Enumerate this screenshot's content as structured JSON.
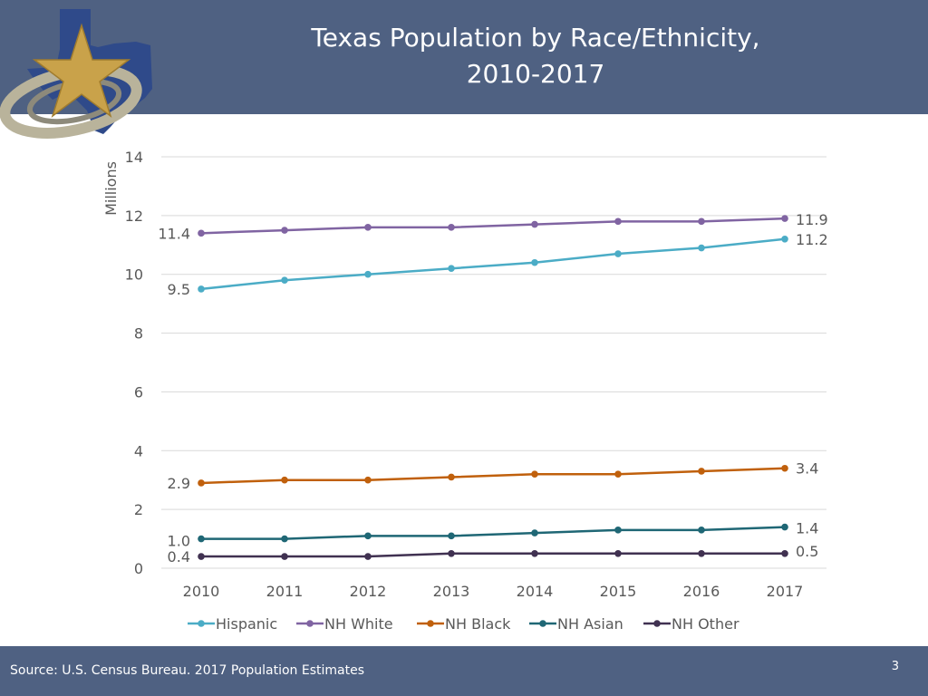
{
  "slide": {
    "title_line1": "Texas Population by Race/Ethnicity,",
    "title_line2": "2010-2017",
    "source": "Source: U.S. Census Bureau. 2017 Population Estimates",
    "page_number": "3"
  },
  "colors": {
    "header_bg": "#4f6182",
    "logo_texas": "#2f4a8a",
    "logo_star": "#c9a24a",
    "logo_swoosh": "#b9b39b",
    "gridline": "#d9d9d9",
    "axis_text": "#595959"
  },
  "chart_data": {
    "type": "line",
    "title": "Texas Population by Race/Ethnicity, 2010-2017",
    "xlabel": "",
    "ylabel": "Millions",
    "ylim": [
      0,
      14
    ],
    "yticks": [
      0,
      2,
      4,
      6,
      8,
      10,
      12,
      14
    ],
    "grid": true,
    "legend_position": "bottom",
    "categories": [
      "2010",
      "2011",
      "2012",
      "2013",
      "2014",
      "2015",
      "2016",
      "2017"
    ],
    "series": [
      {
        "name": "Hispanic",
        "color": "#4bacc6",
        "values": [
          9.5,
          9.8,
          10.0,
          10.2,
          10.4,
          10.7,
          10.9,
          11.2
        ],
        "start_label": "9.5",
        "end_label": "11.2"
      },
      {
        "name": "NH White",
        "color": "#8064a2",
        "values": [
          11.4,
          11.5,
          11.6,
          11.6,
          11.7,
          11.8,
          11.8,
          11.9
        ],
        "start_label": "11.4",
        "end_label": "11.9"
      },
      {
        "name": "NH Black",
        "color": "#c0600c",
        "values": [
          2.9,
          3.0,
          3.0,
          3.1,
          3.2,
          3.2,
          3.3,
          3.4
        ],
        "start_label": "2.9",
        "end_label": "3.4"
      },
      {
        "name": "NH Asian",
        "color": "#1f6775",
        "values": [
          1.0,
          1.0,
          1.1,
          1.1,
          1.2,
          1.3,
          1.3,
          1.4
        ],
        "start_label": "1.0",
        "end_label": "1.4"
      },
      {
        "name": "NH Other",
        "color": "#403151",
        "values": [
          0.4,
          0.4,
          0.4,
          0.5,
          0.5,
          0.5,
          0.5,
          0.5
        ],
        "start_label": "0.4",
        "end_label": "0.5"
      }
    ]
  }
}
